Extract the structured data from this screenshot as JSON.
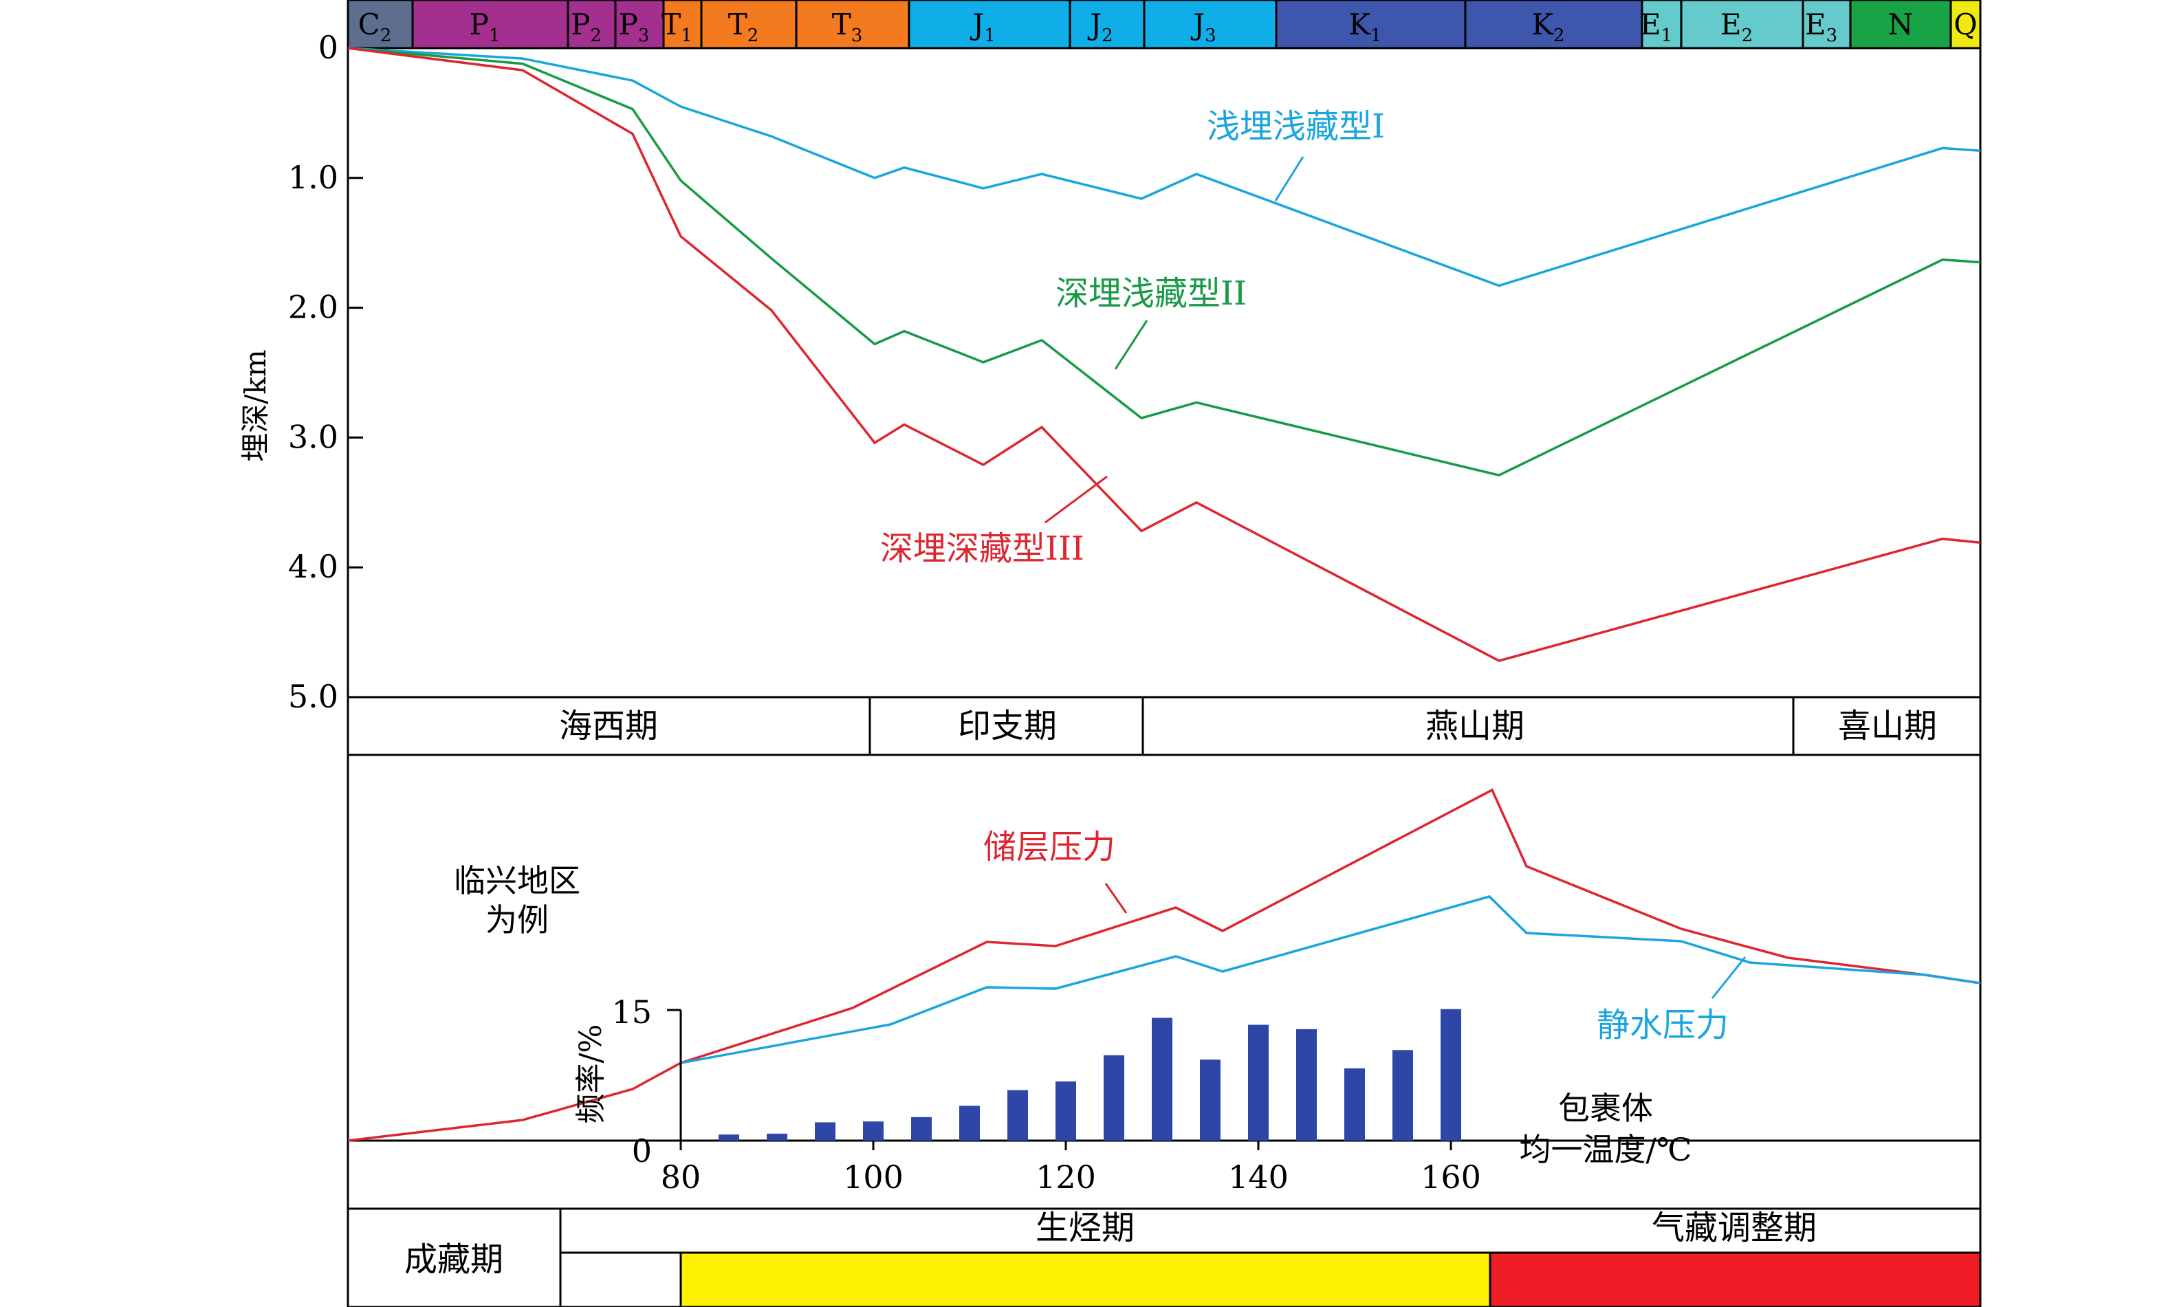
{
  "chart_data": [
    {
      "type": "line",
      "ylabel": "埋深/km",
      "yticks": [
        "0",
        "1.0",
        "2.0",
        "3.0",
        "4.0",
        "5.0"
      ],
      "ylim": [
        0,
        5
      ],
      "stratigraphy": [
        {
          "base": "C",
          "sub": "2",
          "color": "#5e6e8e"
        },
        {
          "base": "P",
          "sub": "1",
          "color": "#a3308f"
        },
        {
          "base": "P",
          "sub": "2",
          "color": "#a3308f"
        },
        {
          "base": "P",
          "sub": "3",
          "color": "#a3308f"
        },
        {
          "base": "T",
          "sub": "1",
          "color": "#f47a20"
        },
        {
          "base": "T",
          "sub": "2",
          "color": "#f47a20"
        },
        {
          "base": "T",
          "sub": "3",
          "color": "#f47a20"
        },
        {
          "base": "J",
          "sub": "1",
          "color": "#10aee9"
        },
        {
          "base": "J",
          "sub": "2",
          "color": "#10aee9"
        },
        {
          "base": "J",
          "sub": "3",
          "color": "#10aee9"
        },
        {
          "base": "K",
          "sub": "1",
          "color": "#3f56ad"
        },
        {
          "base": "K",
          "sub": "2",
          "color": "#3f56ad"
        },
        {
          "base": "E",
          "sub": "1",
          "color": "#64cacb"
        },
        {
          "base": "E",
          "sub": "2",
          "color": "#64cacb"
        },
        {
          "base": "E",
          "sub": "3",
          "color": "#64cacb"
        },
        {
          "base": "N",
          "sub": "",
          "color": "#17a346"
        },
        {
          "base": "Q",
          "sub": "",
          "color": "#f0ea12"
        }
      ],
      "series": [
        {
          "name": "浅埋浅藏型I",
          "color": "#1aa5dd",
          "depths": [
            0,
            0.08,
            0.25,
            0.45,
            0.68,
            1.0,
            0.92,
            1.08,
            0.97,
            1.16,
            0.97,
            1.83,
            0.77,
            0.79
          ]
        },
        {
          "name": "深埋浅藏型II",
          "color": "#189a46",
          "depths": [
            0,
            0.12,
            0.47,
            1.02,
            1.62,
            2.28,
            2.18,
            2.42,
            2.25,
            2.85,
            2.73,
            3.29,
            1.63,
            1.65
          ]
        },
        {
          "name": "深埋深藏型III",
          "color": "#dd2631",
          "depths": [
            0,
            0.17,
            0.66,
            1.45,
            2.02,
            3.04,
            2.9,
            3.21,
            2.92,
            3.72,
            3.5,
            4.72,
            3.78,
            3.81
          ]
        }
      ],
      "periods": [
        "海西期",
        "印支期",
        "燕山期",
        "喜山期"
      ]
    },
    {
      "type": "line",
      "annotation": "临兴地区\n为例",
      "series": [
        {
          "name": "储层压力",
          "color": "#dd2631"
        },
        {
          "name": "静水压力",
          "color": "#1aa5dd"
        }
      ]
    },
    {
      "type": "bar",
      "ylabel": "频率/%",
      "yticks": [
        "0",
        "15"
      ],
      "ylim": [
        0,
        15
      ],
      "xlabel_line1": "包裹体",
      "xlabel_line2": "均一温度/℃",
      "xticks": [
        "80",
        "100",
        "120",
        "140",
        "160"
      ],
      "color": "#2e47a6",
      "bars": [
        {
          "x": 85,
          "value": 0.7
        },
        {
          "x": 90,
          "value": 0.8
        },
        {
          "x": 95,
          "value": 2.1
        },
        {
          "x": 100,
          "value": 2.2
        },
        {
          "x": 105,
          "value": 2.7
        },
        {
          "x": 110,
          "value": 4.0
        },
        {
          "x": 115,
          "value": 5.8
        },
        {
          "x": 120,
          "value": 6.8
        },
        {
          "x": 125,
          "value": 9.8
        },
        {
          "x": 130,
          "value": 14.1
        },
        {
          "x": 135,
          "value": 9.3
        },
        {
          "x": 140,
          "value": 13.3
        },
        {
          "x": 145,
          "value": 12.8
        },
        {
          "x": 150,
          "value": 8.3
        },
        {
          "x": 155,
          "value": 10.4
        },
        {
          "x": 160,
          "value": 15.1
        }
      ]
    }
  ],
  "stage_table": {
    "row_label": "成藏期",
    "stages": [
      {
        "name": "生烃期",
        "color": "#fff200"
      },
      {
        "name": "气藏调整期",
        "color": "#ee1c25"
      }
    ]
  }
}
